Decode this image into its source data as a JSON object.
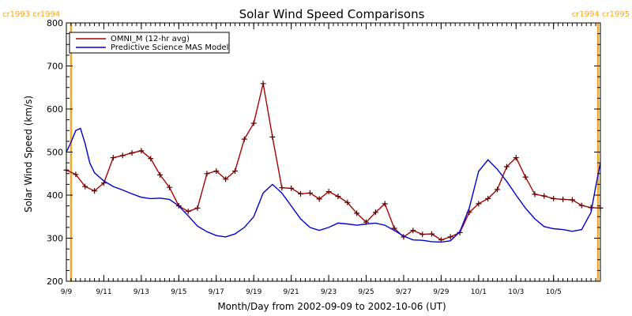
{
  "chart_data": {
    "type": "line",
    "title": "Solar Wind Speed Comparisons",
    "xlabel": "Month/Day from 2002-09-09 to 2002-10-06 (UT)",
    "ylabel": "Solar Wind Speed (km/s)",
    "ylim": [
      200,
      800
    ],
    "yticks": [
      200,
      300,
      400,
      500,
      600,
      700,
      800
    ],
    "xlim": [
      "2002-09-09T00:00",
      "2002-10-07T12:00"
    ],
    "xticks": [
      {
        "date": "2002-09-09",
        "label": "9/9"
      },
      {
        "date": "2002-09-11",
        "label": "9/11"
      },
      {
        "date": "2002-09-13",
        "label": "9/13"
      },
      {
        "date": "2002-09-15",
        "label": "9/15"
      },
      {
        "date": "2002-09-17",
        "label": "9/17"
      },
      {
        "date": "2002-09-19",
        "label": "9/19"
      },
      {
        "date": "2002-09-21",
        "label": "9/21"
      },
      {
        "date": "2002-09-23",
        "label": "9/23"
      },
      {
        "date": "2002-09-25",
        "label": "9/25"
      },
      {
        "date": "2002-09-27",
        "label": "9/27"
      },
      {
        "date": "2002-09-29",
        "label": "9/29"
      },
      {
        "date": "2002-10-01",
        "label": "10/1"
      },
      {
        "date": "2002-10-03",
        "label": "10/3"
      },
      {
        "date": "2002-10-05",
        "label": "10/5"
      }
    ],
    "grid": false,
    "legend_position": "top-left",
    "rotation_markers": [
      {
        "date": "2002-09-09T06:00",
        "label": "cr1993 cr1994",
        "color": "#f5a623",
        "label_align": "left"
      },
      {
        "date": "2002-10-07T09:00",
        "label": "cr1994 cr1995",
        "color": "#f5a623",
        "label_align": "right"
      }
    ],
    "series": [
      {
        "name": "OMNI_M (12-hr avg)",
        "color": "#aa0000",
        "markers": true,
        "x": [
          "2002-09-09T00:00",
          "2002-09-09T12:00",
          "2002-09-10T00:00",
          "2002-09-10T12:00",
          "2002-09-11T00:00",
          "2002-09-11T12:00",
          "2002-09-12T00:00",
          "2002-09-12T12:00",
          "2002-09-13T00:00",
          "2002-09-13T12:00",
          "2002-09-14T00:00",
          "2002-09-14T12:00",
          "2002-09-15T00:00",
          "2002-09-15T12:00",
          "2002-09-16T00:00",
          "2002-09-16T12:00",
          "2002-09-17T00:00",
          "2002-09-17T12:00",
          "2002-09-18T00:00",
          "2002-09-18T12:00",
          "2002-09-19T00:00",
          "2002-09-19T12:00",
          "2002-09-20T00:00",
          "2002-09-20T12:00",
          "2002-09-21T00:00",
          "2002-09-21T12:00",
          "2002-09-22T00:00",
          "2002-09-22T12:00",
          "2002-09-23T00:00",
          "2002-09-23T12:00",
          "2002-09-24T00:00",
          "2002-09-24T12:00",
          "2002-09-25T00:00",
          "2002-09-25T12:00",
          "2002-09-26T00:00",
          "2002-09-26T12:00",
          "2002-09-27T00:00",
          "2002-09-27T12:00",
          "2002-09-28T00:00",
          "2002-09-28T12:00",
          "2002-09-29T00:00",
          "2002-09-29T12:00",
          "2002-09-30T00:00",
          "2002-09-30T12:00",
          "2002-10-01T00:00",
          "2002-10-01T12:00",
          "2002-10-02T00:00",
          "2002-10-02T12:00",
          "2002-10-03T00:00",
          "2002-10-03T12:00",
          "2002-10-04T00:00",
          "2002-10-04T12:00",
          "2002-10-05T00:00",
          "2002-10-05T12:00",
          "2002-10-06T00:00",
          "2002-10-06T12:00",
          "2002-10-07T00:00",
          "2002-10-07T12:00"
        ],
        "y": [
          458,
          448,
          420,
          410,
          428,
          487,
          492,
          498,
          503,
          485,
          447,
          418,
          375,
          362,
          370,
          450,
          456,
          437,
          456,
          530,
          567,
          659,
          535,
          417,
          416,
          403,
          405,
          391,
          408,
          397,
          383,
          358,
          337,
          360,
          380,
          323,
          303,
          318,
          309,
          310,
          296,
          303,
          313,
          360,
          380,
          392,
          413,
          466,
          487,
          442,
          402,
          398,
          392,
          390,
          389,
          376,
          371,
          370
        ]
      },
      {
        "name": "Predictive Science MAS Model",
        "color": "#0000cc",
        "markers": false,
        "x": [
          "2002-09-09T00:00",
          "2002-09-09T06:00",
          "2002-09-09T12:00",
          "2002-09-09T18:00",
          "2002-09-10T00:00",
          "2002-09-10T06:00",
          "2002-09-10T12:00",
          "2002-09-11T00:00",
          "2002-09-11T12:00",
          "2002-09-12T00:00",
          "2002-09-12T12:00",
          "2002-09-13T00:00",
          "2002-09-13T12:00",
          "2002-09-14T00:00",
          "2002-09-14T12:00",
          "2002-09-15T00:00",
          "2002-09-15T12:00",
          "2002-09-16T00:00",
          "2002-09-16T12:00",
          "2002-09-17T00:00",
          "2002-09-17T12:00",
          "2002-09-18T00:00",
          "2002-09-18T12:00",
          "2002-09-19T00:00",
          "2002-09-19T12:00",
          "2002-09-20T00:00",
          "2002-09-20T12:00",
          "2002-09-21T00:00",
          "2002-09-21T12:00",
          "2002-09-22T00:00",
          "2002-09-22T12:00",
          "2002-09-23T00:00",
          "2002-09-23T12:00",
          "2002-09-24T00:00",
          "2002-09-24T12:00",
          "2002-09-25T00:00",
          "2002-09-25T12:00",
          "2002-09-26T00:00",
          "2002-09-26T12:00",
          "2002-09-27T00:00",
          "2002-09-27T12:00",
          "2002-09-28T00:00",
          "2002-09-28T12:00",
          "2002-09-29T00:00",
          "2002-09-29T12:00",
          "2002-09-30T00:00",
          "2002-09-30T12:00",
          "2002-10-01T00:00",
          "2002-10-01T12:00",
          "2002-10-02T00:00",
          "2002-10-02T12:00",
          "2002-10-03T00:00",
          "2002-10-03T12:00",
          "2002-10-04T00:00",
          "2002-10-04T12:00",
          "2002-10-05T00:00",
          "2002-10-05T12:00",
          "2002-10-06T00:00",
          "2002-10-06T12:00",
          "2002-10-07T00:00",
          "2002-10-07T06:00",
          "2002-10-07T12:00"
        ],
        "y": [
          500,
          523,
          550,
          555,
          520,
          475,
          452,
          433,
          420,
          412,
          403,
          395,
          392,
          393,
          390,
          375,
          352,
          328,
          315,
          306,
          303,
          310,
          325,
          350,
          405,
          425,
          405,
          375,
          345,
          325,
          318,
          325,
          335,
          333,
          330,
          333,
          335,
          330,
          318,
          305,
          296,
          295,
          292,
          291,
          294,
          315,
          370,
          455,
          482,
          460,
          432,
          400,
          370,
          345,
          327,
          322,
          320,
          316,
          320,
          360,
          420,
          475
        ]
      }
    ]
  }
}
